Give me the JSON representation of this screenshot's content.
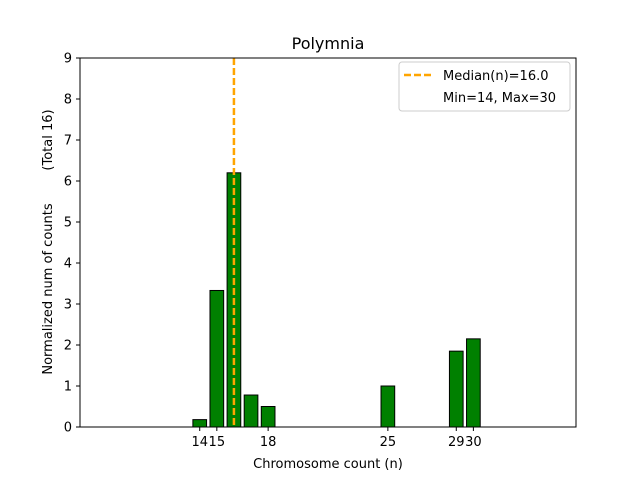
{
  "chart_data": {
    "type": "bar",
    "title": "Polymnia",
    "xlabel": "Chromosome count (n)",
    "ylabel": "Normalized num of counts",
    "ylabel_secondary": "(Total 16)",
    "xlim": [
      7,
      36
    ],
    "ylim": [
      0,
      9
    ],
    "xticks": [
      14,
      15,
      18,
      25,
      29,
      30
    ],
    "yticks": [
      0,
      1,
      2,
      3,
      4,
      5,
      6,
      7,
      8,
      9
    ],
    "bar_color": "#008000",
    "bar_edge_color": "#000000",
    "bars": [
      {
        "x": 14,
        "value": 0.18
      },
      {
        "x": 15,
        "value": 3.33
      },
      {
        "x": 16,
        "value": 6.2
      },
      {
        "x": 17,
        "value": 0.78
      },
      {
        "x": 18,
        "value": 0.5
      },
      {
        "x": 25,
        "value": 1.0
      },
      {
        "x": 29,
        "value": 1.85
      },
      {
        "x": 30,
        "value": 2.15
      }
    ],
    "median": {
      "value": 16.0,
      "color": "#FFA500",
      "label": "Median(n)=16.0"
    },
    "minmax_label": "Min=14, Max=30",
    "legend_position": "top-right",
    "grid": false
  }
}
